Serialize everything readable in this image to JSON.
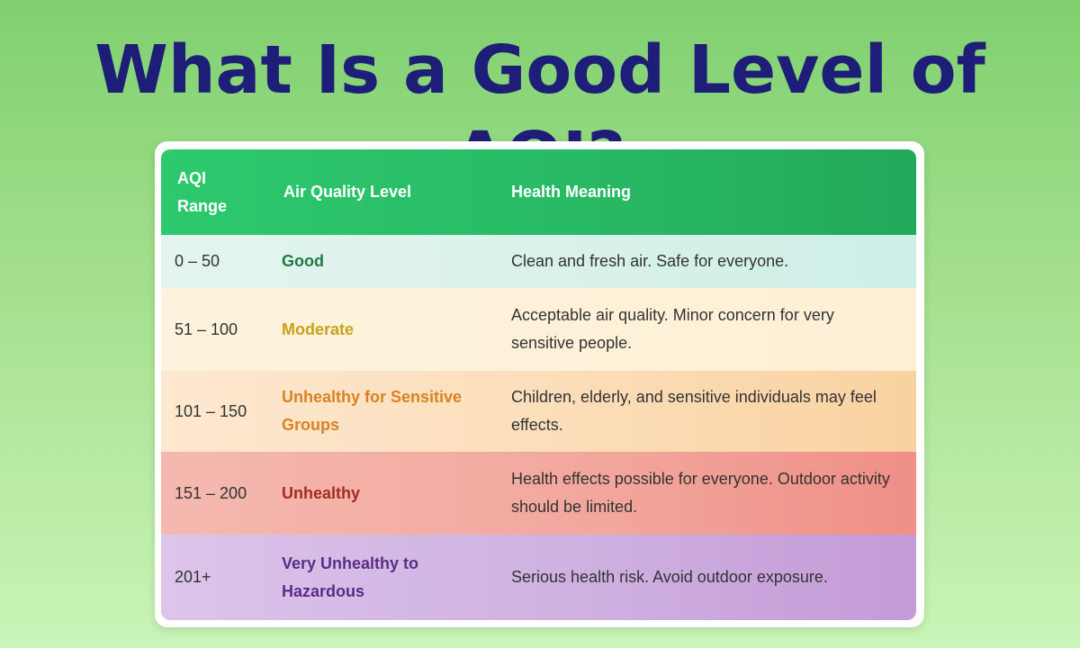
{
  "title": "What Is a Good Level of AQI?",
  "table": {
    "headers": {
      "range": "AQI Range",
      "level": "Air Quality Level",
      "meaning": "Health Meaning"
    },
    "rows": [
      {
        "range": "0 – 50",
        "level": "Good",
        "meaning": "Clean and fresh air. Safe for everyone.",
        "level_color": "#1f7a45"
      },
      {
        "range": "51 – 100",
        "level": "Moderate",
        "meaning": "Acceptable air quality. Minor concern for very sensitive people.",
        "level_color": "#c8a21a"
      },
      {
        "range": "101 – 150",
        "level": "Unhealthy for Sensitive Groups",
        "meaning": "Children, elderly, and sensitive individuals may feel effects.",
        "level_color": "#d98222"
      },
      {
        "range": "151 – 200",
        "level": "Unhealthy",
        "meaning": "Health effects possible for everyone. Outdoor activity should be limited.",
        "level_color": "#a52b1e"
      },
      {
        "range": "201+",
        "level": "Very Unhealthy to Hazardous",
        "meaning": "Serious health risk. Avoid outdoor exposure.",
        "level_color": "#5b2d86"
      }
    ]
  },
  "colors": {
    "title": "#1e1e78",
    "header_bg": "#2dc96d",
    "page_bg": "#a6e08e"
  }
}
